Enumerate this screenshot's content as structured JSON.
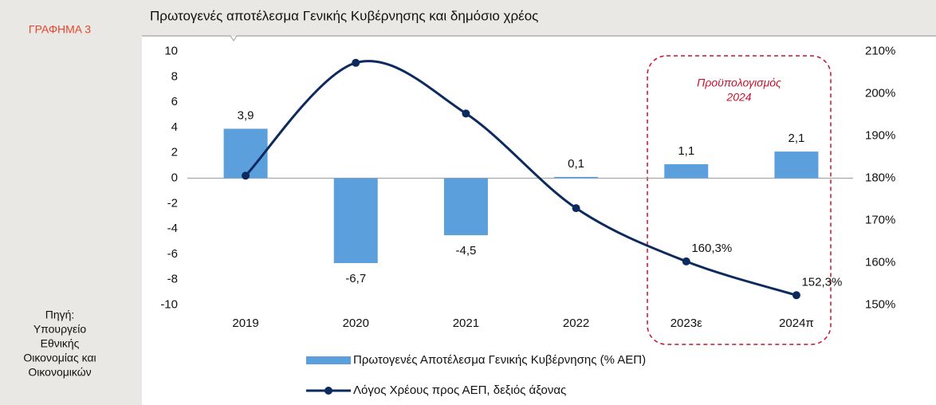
{
  "sidebar": {
    "label": "ΓΡΑΦΗΜΑ 3",
    "source_lines": [
      "Πηγή:",
      "Υπουργείο",
      "Εθνικής",
      "Οικονομίας και",
      "Οικονομικών"
    ]
  },
  "chart_data": {
    "type": "bar_line",
    "title": "Πρωτογενές αποτέλεσμα Γενικής Κυβέρνησης και δημόσιο χρέος",
    "categories": [
      "2019",
      "2020",
      "2021",
      "2022",
      "2023ε",
      "2024π"
    ],
    "series": [
      {
        "name": "Πρωτογενές Αποτέλεσμα Γενικής Κυβέρνησης (% ΑΕΠ)",
        "type": "bar",
        "color": "#5b9fdc",
        "values": [
          3.9,
          -6.7,
          -4.5,
          0.1,
          1.1,
          2.1
        ],
        "value_labels": [
          "3,9",
          "-6,7",
          "-4,5",
          "0,1",
          "1,1",
          "2,1"
        ]
      },
      {
        "name": "Λόγος Χρέους προς ΑΕΠ, δεξιός άξονας",
        "type": "line",
        "axis": "y2",
        "color": "#0c2a5e",
        "values": [
          180.6,
          207.3,
          195.3,
          172.9,
          160.3,
          152.3
        ],
        "value_labels": [
          null,
          null,
          null,
          null,
          "160,3%",
          "152,3%"
        ]
      }
    ],
    "ylim": [
      -10,
      10
    ],
    "yticks": [
      -10,
      -8,
      -6,
      -4,
      -2,
      0,
      2,
      4,
      6,
      8,
      10
    ],
    "y2lim": [
      150,
      210
    ],
    "y2ticks": [
      {
        "value": 150,
        "label": "150%"
      },
      {
        "value": 160,
        "label": "160%"
      },
      {
        "value": 170,
        "label": "170%"
      },
      {
        "value": 180,
        "label": "180%"
      },
      {
        "value": 190,
        "label": "190%"
      },
      {
        "value": 200,
        "label": "200%"
      },
      {
        "value": 210,
        "label": "210%"
      }
    ],
    "annotation": {
      "lines": [
        "Προϋπολογισμός",
        "2024"
      ],
      "color": "#c8102e"
    }
  }
}
